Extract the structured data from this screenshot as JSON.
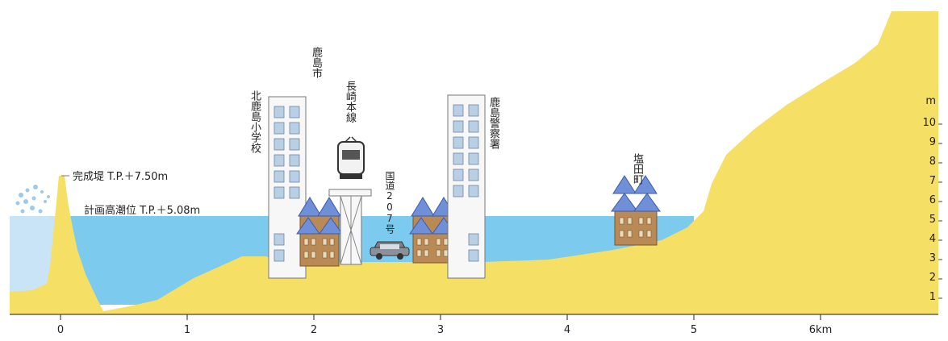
{
  "labels": {
    "levee": "完成堤 T.P.＋7.50m",
    "tide": "計画高潮位 T.P.＋5.08m",
    "city": "鹿島市",
    "school": "北鹿島小学校",
    "rail": "長崎本線",
    "road": "国道207号",
    "police": "鹿島警察署",
    "town": "塩田町"
  },
  "x_axis": {
    "ticks": [
      "0",
      "1",
      "2",
      "3",
      "4",
      "5",
      "6km"
    ]
  },
  "y_axis": {
    "unit": "m",
    "ticks": [
      "10",
      "9",
      "8",
      "7",
      "6",
      "5",
      "4",
      "3",
      "2",
      "1"
    ]
  },
  "colors": {
    "land": "#f5df65",
    "water": "#7ccbee",
    "outer_water": "#c9e4f6",
    "building": "#f7f7f7",
    "window": "#b9cfe3",
    "house_roof": "#6f8fd8",
    "house_wall": "#b98a55"
  }
}
